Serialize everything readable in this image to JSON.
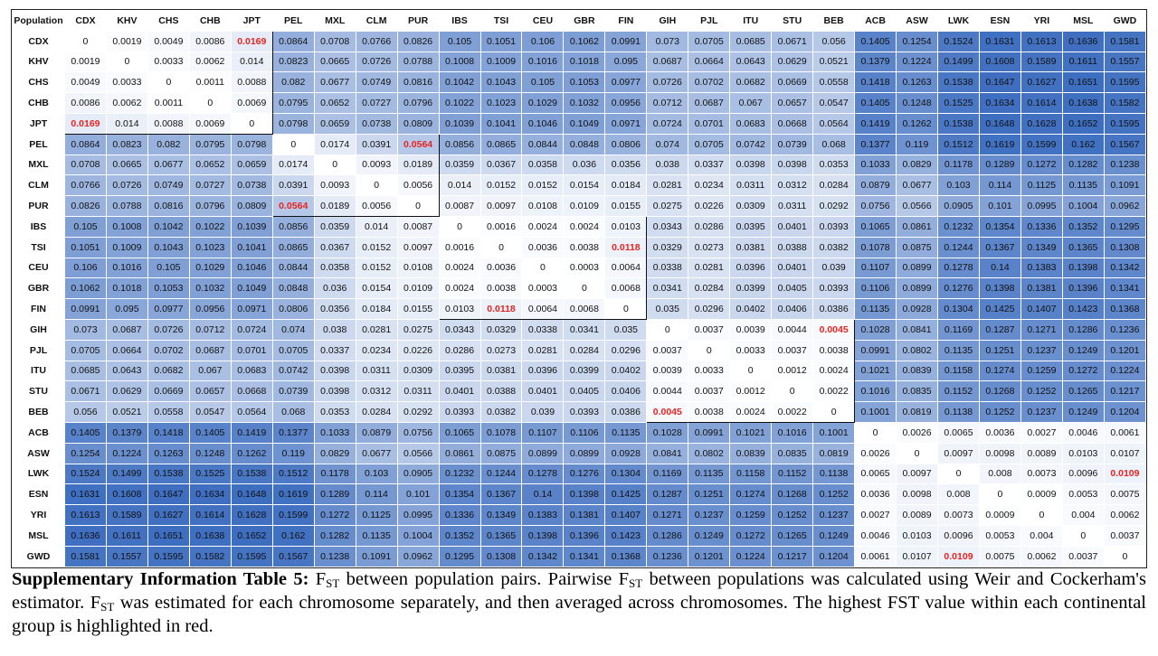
{
  "table": {
    "corner": "Population",
    "columns": [
      "CDX",
      "KHV",
      "CHS",
      "CHB",
      "JPT",
      "PEL",
      "MXL",
      "CLM",
      "PUR",
      "IBS",
      "TSI",
      "CEU",
      "GBR",
      "FIN",
      "GIH",
      "PJL",
      "ITU",
      "STU",
      "BEB",
      "ACB",
      "ASW",
      "LWK",
      "ESN",
      "YRI",
      "MSL",
      "GWD"
    ],
    "rows": [
      {
        "label": "CDX",
        "values": [
          0,
          0.0019,
          0.0049,
          0.0086,
          0.0169,
          0.0864,
          0.0708,
          0.0766,
          0.0826,
          0.105,
          0.1051,
          0.106,
          0.1062,
          0.0991,
          0.073,
          0.0705,
          0.0685,
          0.0671,
          0.056,
          0.1405,
          0.1254,
          0.1524,
          0.1631,
          0.1613,
          0.1636,
          0.1581
        ]
      },
      {
        "label": "KHV",
        "values": [
          0.0019,
          0,
          0.0033,
          0.0062,
          0.014,
          0.0823,
          0.0665,
          0.0726,
          0.0788,
          0.1008,
          0.1009,
          0.1016,
          0.1018,
          0.095,
          0.0687,
          0.0664,
          0.0643,
          0.0629,
          0.0521,
          0.1379,
          0.1224,
          0.1499,
          0.1608,
          0.1589,
          0.1611,
          0.1557
        ]
      },
      {
        "label": "CHS",
        "values": [
          0.0049,
          0.0033,
          0,
          0.0011,
          0.0088,
          0.082,
          0.0677,
          0.0749,
          0.0816,
          0.1042,
          0.1043,
          0.105,
          0.1053,
          0.0977,
          0.0726,
          0.0702,
          0.0682,
          0.0669,
          0.0558,
          0.1418,
          0.1263,
          0.1538,
          0.1647,
          0.1627,
          0.1651,
          0.1595
        ]
      },
      {
        "label": "CHB",
        "values": [
          0.0086,
          0.0062,
          0.0011,
          0,
          0.0069,
          0.0795,
          0.0652,
          0.0727,
          0.0796,
          0.1022,
          0.1023,
          0.1029,
          0.1032,
          0.0956,
          0.0712,
          0.0687,
          0.067,
          0.0657,
          0.0547,
          0.1405,
          0.1248,
          0.1525,
          0.1634,
          0.1614,
          0.1638,
          0.1582
        ]
      },
      {
        "label": "JPT",
        "values": [
          0.0169,
          0.014,
          0.0088,
          0.0069,
          0,
          0.0798,
          0.0659,
          0.0738,
          0.0809,
          0.1039,
          0.1041,
          0.1046,
          0.1049,
          0.0971,
          0.0724,
          0.0701,
          0.0683,
          0.0668,
          0.0564,
          0.1419,
          0.1262,
          0.1538,
          0.1648,
          0.1628,
          0.1652,
          0.1595
        ]
      },
      {
        "label": "PEL",
        "values": [
          0.0864,
          0.0823,
          0.082,
          0.0795,
          0.0798,
          0,
          0.0174,
          0.0391,
          0.0564,
          0.0856,
          0.0865,
          0.0844,
          0.0848,
          0.0806,
          0.074,
          0.0705,
          0.0742,
          0.0739,
          0.068,
          0.1377,
          0.119,
          0.1512,
          0.1619,
          0.1599,
          0.162,
          0.1567
        ]
      },
      {
        "label": "MXL",
        "values": [
          0.0708,
          0.0665,
          0.0677,
          0.0652,
          0.0659,
          0.0174,
          0,
          0.0093,
          0.0189,
          0.0359,
          0.0367,
          0.0358,
          0.036,
          0.0356,
          0.038,
          0.0337,
          0.0398,
          0.0398,
          0.0353,
          0.1033,
          0.0829,
          0.1178,
          0.1289,
          0.1272,
          0.1282,
          0.1238
        ]
      },
      {
        "label": "CLM",
        "values": [
          0.0766,
          0.0726,
          0.0749,
          0.0727,
          0.0738,
          0.0391,
          0.0093,
          0,
          0.0056,
          0.014,
          0.0152,
          0.0152,
          0.0154,
          0.0184,
          0.0281,
          0.0234,
          0.0311,
          0.0312,
          0.0284,
          0.0879,
          0.0677,
          0.103,
          0.114,
          0.1125,
          0.1135,
          0.1091
        ]
      },
      {
        "label": "PUR",
        "values": [
          0.0826,
          0.0788,
          0.0816,
          0.0796,
          0.0809,
          0.0564,
          0.0189,
          0.0056,
          0,
          0.0087,
          0.0097,
          0.0108,
          0.0109,
          0.0155,
          0.0275,
          0.0226,
          0.0309,
          0.0311,
          0.0292,
          0.0756,
          0.0566,
          0.0905,
          0.101,
          0.0995,
          0.1004,
          0.0962
        ]
      },
      {
        "label": "IBS",
        "values": [
          0.105,
          0.1008,
          0.1042,
          0.1022,
          0.1039,
          0.0856,
          0.0359,
          0.014,
          0.0087,
          0,
          0.0016,
          0.0024,
          0.0024,
          0.0103,
          0.0343,
          0.0286,
          0.0395,
          0.0401,
          0.0393,
          0.1065,
          0.0861,
          0.1232,
          0.1354,
          0.1336,
          0.1352,
          0.1295
        ]
      },
      {
        "label": "TSI",
        "values": [
          0.1051,
          0.1009,
          0.1043,
          0.1023,
          0.1041,
          0.0865,
          0.0367,
          0.0152,
          0.0097,
          0.0016,
          0,
          0.0036,
          0.0038,
          0.0118,
          0.0329,
          0.0273,
          0.0381,
          0.0388,
          0.0382,
          0.1078,
          0.0875,
          0.1244,
          0.1367,
          0.1349,
          0.1365,
          0.1308
        ]
      },
      {
        "label": "CEU",
        "values": [
          0.106,
          0.1016,
          0.105,
          0.1029,
          0.1046,
          0.0844,
          0.0358,
          0.0152,
          0.0108,
          0.0024,
          0.0036,
          0,
          0.0003,
          0.0064,
          0.0338,
          0.0281,
          0.0396,
          0.0401,
          0.039,
          0.1107,
          0.0899,
          0.1278,
          0.14,
          0.1383,
          0.1398,
          0.1342
        ]
      },
      {
        "label": "GBR",
        "values": [
          0.1062,
          0.1018,
          0.1053,
          0.1032,
          0.1049,
          0.0848,
          0.036,
          0.0154,
          0.0109,
          0.0024,
          0.0038,
          0.0003,
          0,
          0.0068,
          0.0341,
          0.0284,
          0.0399,
          0.0405,
          0.0393,
          0.1106,
          0.0899,
          0.1276,
          0.1398,
          0.1381,
          0.1396,
          0.1341
        ]
      },
      {
        "label": "FIN",
        "values": [
          0.0991,
          0.095,
          0.0977,
          0.0956,
          0.0971,
          0.0806,
          0.0356,
          0.0184,
          0.0155,
          0.0103,
          0.0118,
          0.0064,
          0.0068,
          0,
          0.035,
          0.0296,
          0.0402,
          0.0406,
          0.0386,
          0.1135,
          0.0928,
          0.1304,
          0.1425,
          0.1407,
          0.1423,
          0.1368
        ]
      },
      {
        "label": "GIH",
        "values": [
          0.073,
          0.0687,
          0.0726,
          0.0712,
          0.0724,
          0.074,
          0.038,
          0.0281,
          0.0275,
          0.0343,
          0.0329,
          0.0338,
          0.0341,
          0.035,
          0,
          0.0037,
          0.0039,
          0.0044,
          0.0045,
          0.1028,
          0.0841,
          0.1169,
          0.1287,
          0.1271,
          0.1286,
          0.1236
        ]
      },
      {
        "label": "PJL",
        "values": [
          0.0705,
          0.0664,
          0.0702,
          0.0687,
          0.0701,
          0.0705,
          0.0337,
          0.0234,
          0.0226,
          0.0286,
          0.0273,
          0.0281,
          0.0284,
          0.0296,
          0.0037,
          0,
          0.0033,
          0.0037,
          0.0038,
          0.0991,
          0.0802,
          0.1135,
          0.1251,
          0.1237,
          0.1249,
          0.1201
        ]
      },
      {
        "label": "ITU",
        "values": [
          0.0685,
          0.0643,
          0.0682,
          0.067,
          0.0683,
          0.0742,
          0.0398,
          0.0311,
          0.0309,
          0.0395,
          0.0381,
          0.0396,
          0.0399,
          0.0402,
          0.0039,
          0.0033,
          0,
          0.0012,
          0.0024,
          0.1021,
          0.0839,
          0.1158,
          0.1274,
          0.1259,
          0.1272,
          0.1224
        ]
      },
      {
        "label": "STU",
        "values": [
          0.0671,
          0.0629,
          0.0669,
          0.0657,
          0.0668,
          0.0739,
          0.0398,
          0.0312,
          0.0311,
          0.0401,
          0.0388,
          0.0401,
          0.0405,
          0.0406,
          0.0044,
          0.0037,
          0.0012,
          0,
          0.0022,
          0.1016,
          0.0835,
          0.1152,
          0.1268,
          0.1252,
          0.1265,
          0.1217
        ]
      },
      {
        "label": "BEB",
        "values": [
          0.056,
          0.0521,
          0.0558,
          0.0547,
          0.0564,
          0.068,
          0.0353,
          0.0284,
          0.0292,
          0.0393,
          0.0382,
          0.039,
          0.0393,
          0.0386,
          0.0045,
          0.0038,
          0.0024,
          0.0022,
          0,
          0.1001,
          0.0819,
          0.1138,
          0.1252,
          0.1237,
          0.1249,
          0.1204
        ]
      },
      {
        "label": "ACB",
        "values": [
          0.1405,
          0.1379,
          0.1418,
          0.1405,
          0.1419,
          0.1377,
          0.1033,
          0.0879,
          0.0756,
          0.1065,
          0.1078,
          0.1107,
          0.1106,
          0.1135,
          0.1028,
          0.0991,
          0.1021,
          0.1016,
          0.1001,
          0,
          0.0026,
          0.0065,
          0.0036,
          0.0027,
          0.0046,
          0.0061
        ]
      },
      {
        "label": "ASW",
        "values": [
          0.1254,
          0.1224,
          0.1263,
          0.1248,
          0.1262,
          0.119,
          0.0829,
          0.0677,
          0.0566,
          0.0861,
          0.0875,
          0.0899,
          0.0899,
          0.0928,
          0.0841,
          0.0802,
          0.0839,
          0.0835,
          0.0819,
          0.0026,
          0,
          0.0097,
          0.0098,
          0.0089,
          0.0103,
          0.0107
        ]
      },
      {
        "label": "LWK",
        "values": [
          0.1524,
          0.1499,
          0.1538,
          0.1525,
          0.1538,
          0.1512,
          0.1178,
          0.103,
          0.0905,
          0.1232,
          0.1244,
          0.1278,
          0.1276,
          0.1304,
          0.1169,
          0.1135,
          0.1158,
          0.1152,
          0.1138,
          0.0065,
          0.0097,
          0,
          0.008,
          0.0073,
          0.0096,
          0.0109
        ]
      },
      {
        "label": "ESN",
        "values": [
          0.1631,
          0.1608,
          0.1647,
          0.1634,
          0.1648,
          0.1619,
          0.1289,
          0.114,
          0.101,
          0.1354,
          0.1367,
          0.14,
          0.1398,
          0.1425,
          0.1287,
          0.1251,
          0.1274,
          0.1268,
          0.1252,
          0.0036,
          0.0098,
          0.008,
          0,
          0.0009,
          0.0053,
          0.0075
        ]
      },
      {
        "label": "YRI",
        "values": [
          0.1613,
          0.1589,
          0.1627,
          0.1614,
          0.1628,
          0.1599,
          0.1272,
          0.1125,
          0.0995,
          0.1336,
          0.1349,
          0.1383,
          0.1381,
          0.1407,
          0.1271,
          0.1237,
          0.1259,
          0.1252,
          0.1237,
          0.0027,
          0.0089,
          0.0073,
          0.0009,
          0,
          0.004,
          0.0062
        ]
      },
      {
        "label": "MSL",
        "values": [
          0.1636,
          0.1611,
          0.1651,
          0.1638,
          0.1652,
          0.162,
          0.1282,
          0.1135,
          0.1004,
          0.1352,
          0.1365,
          0.1398,
          0.1396,
          0.1423,
          0.1286,
          0.1249,
          0.1272,
          0.1265,
          0.1249,
          0.0046,
          0.0103,
          0.0096,
          0.0053,
          0.004,
          0,
          0.0037
        ]
      },
      {
        "label": "GWD",
        "values": [
          0.1581,
          0.1557,
          0.1595,
          0.1582,
          0.1595,
          0.1567,
          0.1238,
          0.1091,
          0.0962,
          0.1295,
          0.1308,
          0.1342,
          0.1341,
          0.1368,
          0.1236,
          0.1201,
          0.1224,
          0.1217,
          0.1204,
          0.0061,
          0.0107,
          0.0109,
          0.0075,
          0.0062,
          0.0037,
          0
        ]
      }
    ],
    "highlighted": [
      [
        "CDX",
        "JPT"
      ],
      [
        "PEL",
        "PUR"
      ],
      [
        "TSI",
        "FIN"
      ],
      [
        "GIH",
        "BEB"
      ],
      [
        "LWK",
        "GWD"
      ]
    ],
    "highlight_color": "#e8231f"
  },
  "caption": {
    "label": "Supplementary Information Table 5:",
    "parts": [
      " F",
      "ST",
      " between population pairs. Pairwise F",
      "ST",
      " between populations was calculated using Weir and Cockerham's estimator. F",
      "ST",
      " was estimated for each chromosome separately, and then averaged across chromosomes. The highest FST value within each continental group is highlighted in red."
    ]
  }
}
